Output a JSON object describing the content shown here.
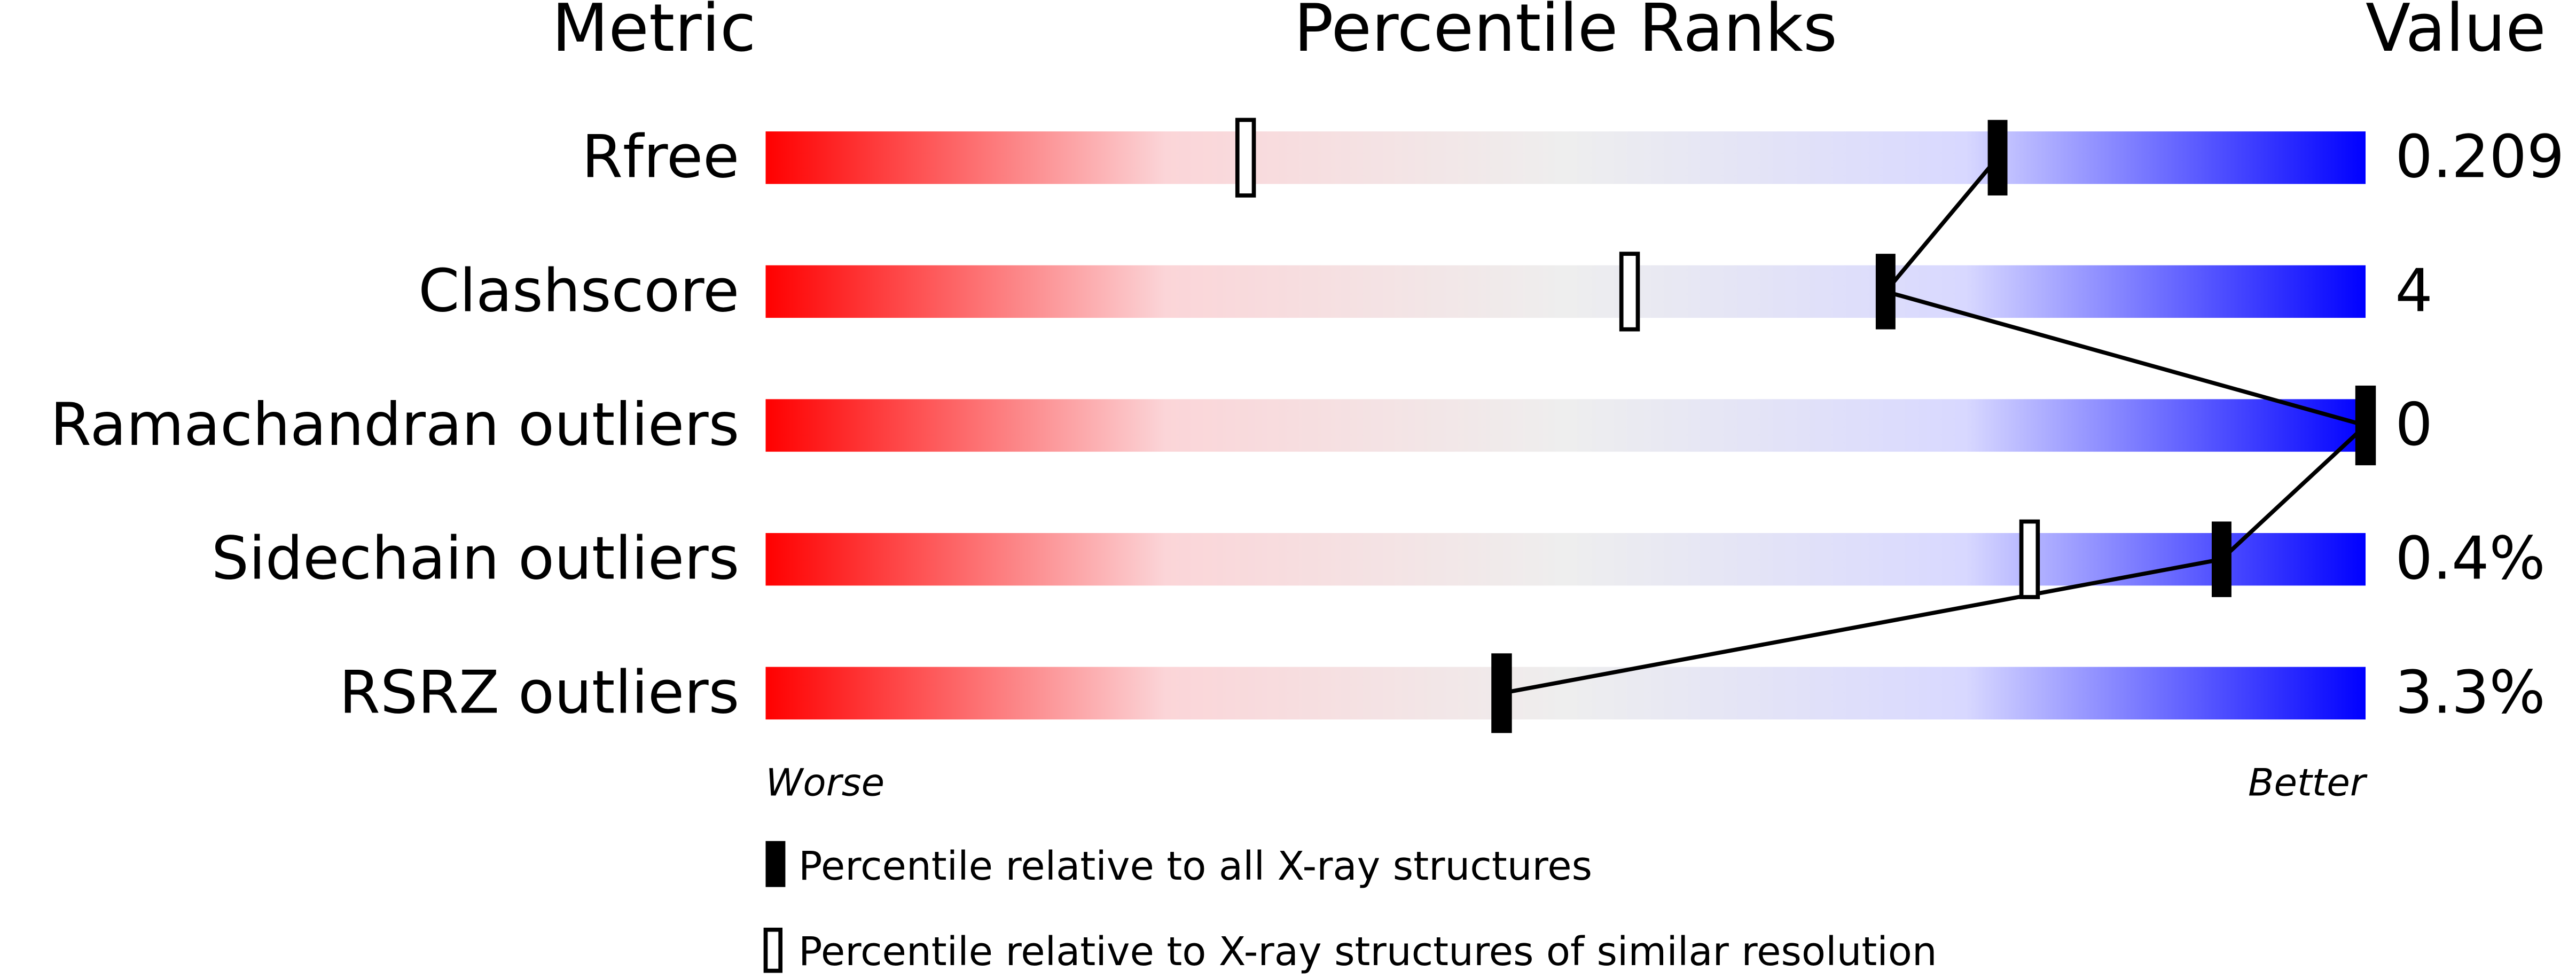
{
  "chart_data": {
    "type": "percentile",
    "headers": [
      "Metric",
      "Percentile Ranks",
      "Value"
    ],
    "categories": [
      "Rfree",
      "Clashscore",
      "Ramachandran outliers",
      "Sidechain outliers",
      "RSRZ outliers"
    ],
    "value_column": [
      "0.209",
      "4",
      "0",
      "0.4%",
      "3.3%"
    ],
    "series": [
      {
        "name": "Percentile relative to all X-ray structures",
        "color": "#000000",
        "values": [
          77,
          70,
          100,
          91,
          46
        ]
      },
      {
        "name": "Percentile relative to X-ray structures of similar resolution",
        "color": "#000000",
        "values": [
          30,
          54,
          100,
          79,
          46
        ]
      }
    ],
    "xlim": [
      0,
      100
    ],
    "axis_labels": [
      "Worse",
      "Better"
    ],
    "gradient": [
      "#ff0000",
      "#fbd5d8",
      "#eeeeee",
      "#d8d8ff",
      "#0000ff"
    ]
  }
}
